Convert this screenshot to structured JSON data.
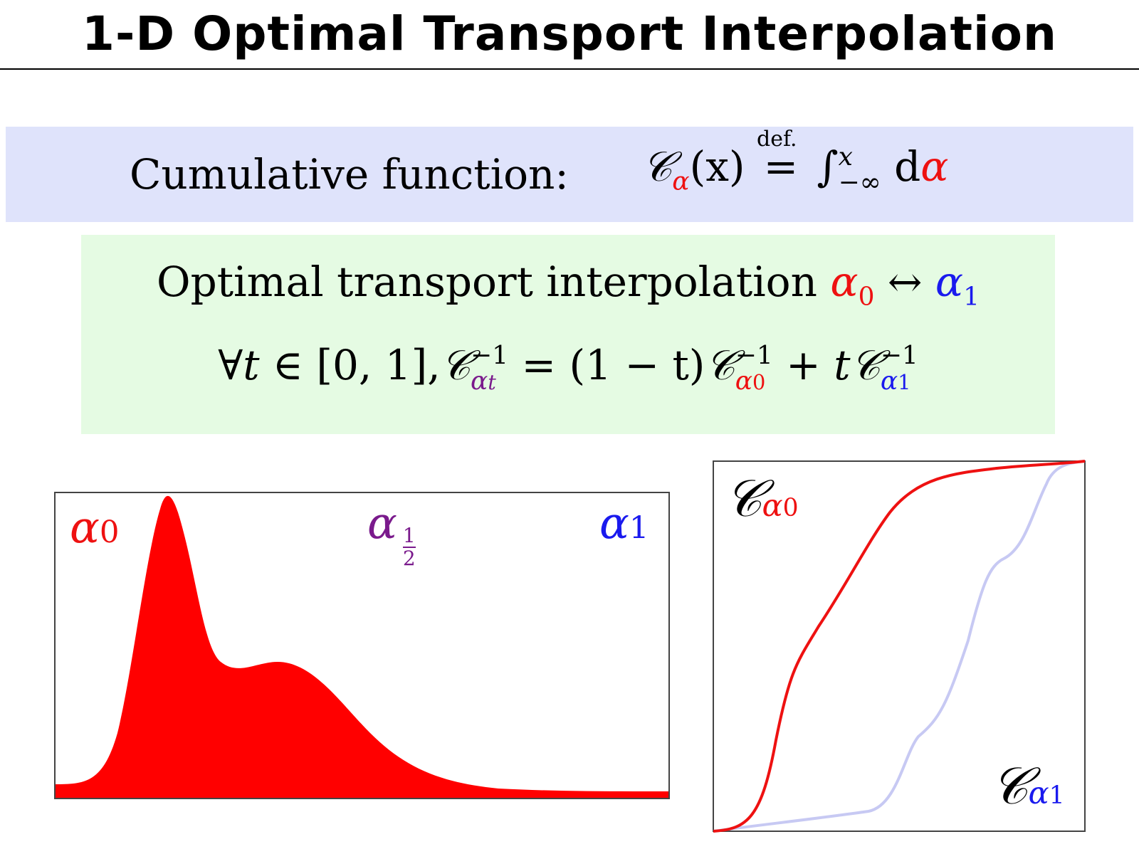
{
  "title": "1-D Optimal Transport Interpolation",
  "cumulative": {
    "label": "Cumulative function:",
    "C": "𝒞",
    "alpha": "α",
    "arg": "(x)",
    "def": "def.",
    "eq": "=",
    "integral": "∫",
    "upper": "x",
    "lower": "−∞",
    "d": "d",
    "alpha2": "α"
  },
  "interp": {
    "title_text": "Optimal transport interpolation",
    "alpha": "α",
    "sub0": "0",
    "arrow": "↔",
    "sub1": "1",
    "forall": "∀",
    "t": "t",
    "in": "∈",
    "interval": "[0, 1],",
    "C": "𝒞",
    "inv": "−1",
    "sub_t": "t",
    "eq": "=",
    "one_minus_t": "(1 − t)",
    "plus": "+"
  },
  "left_plot": {
    "label_a0_alpha": "α",
    "label_a0_sub": "0",
    "label_half_alpha": "α",
    "label_half_num": "1",
    "label_half_den": "2",
    "label_a1_alpha": "α",
    "label_a1_sub": "1",
    "fill_color": "#ff0000"
  },
  "right_plot": {
    "label_c0_C": "𝒞",
    "label_c0_alpha": "α",
    "label_c0_sub": "0",
    "label_c1_C": "𝒞",
    "label_c1_alpha": "α",
    "label_c1_sub": "1",
    "c0_color": "#ee1111",
    "c1_color": "#c7c9f3"
  },
  "colors": {
    "red": "#ee1111",
    "blue": "#1a1aee",
    "purple": "#7a1a8c"
  }
}
